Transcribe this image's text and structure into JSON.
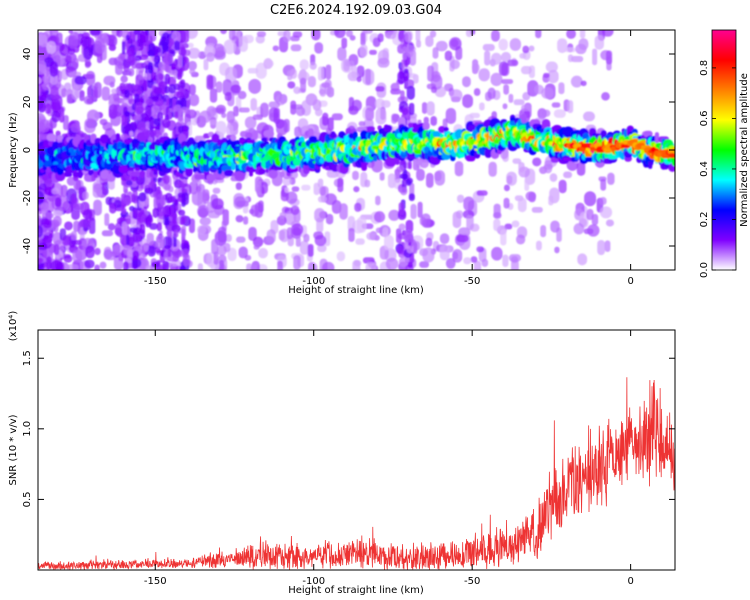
{
  "title": "C2E6.2024.192.09.03.G04",
  "chart_data": [
    {
      "type": "heatmap",
      "xlabel": "Height of straight line (km)",
      "ylabel": "Frequency (Hz)",
      "xlim": [
        -187,
        14
      ],
      "ylim": [
        -50,
        50
      ],
      "xticks": [
        -150,
        -100,
        -50,
        0
      ],
      "yticks": [
        -40,
        -20,
        0,
        20,
        40
      ],
      "ridge": {
        "x": [
          -187,
          -170,
          -150,
          -130,
          -110,
          -90,
          -70,
          -55,
          -45,
          -38,
          -34,
          -25,
          -15,
          -5,
          0,
          5,
          14
        ],
        "freq_hz": [
          -4,
          -3,
          -2,
          -3,
          -2,
          0,
          3,
          2,
          5,
          7,
          6,
          3,
          1,
          1,
          3,
          0,
          -2
        ]
      },
      "colorbar": {
        "label": "Normalized spectral amplitude",
        "ticks": [
          0.0,
          0.2,
          0.4,
          0.6,
          0.8
        ],
        "range": [
          0,
          0.95
        ],
        "colors": [
          "#ffffff",
          "#7f00ff",
          "#0000ff",
          "#00ffff",
          "#00ff00",
          "#ffff00",
          "#ff7f00",
          "#ff0000",
          "#ff0090"
        ]
      }
    },
    {
      "type": "line",
      "xlabel": "Height of straight line (km)",
      "ylabel": "SNR (10 * v/v)",
      "y_multiplier": "(x10⁴)",
      "xlim": [
        -187,
        14
      ],
      "ylim": [
        0,
        1.7
      ],
      "xticks": [
        -150,
        -100,
        -50,
        0
      ],
      "yticks": [
        0.5,
        1.0,
        1.5
      ],
      "series": [
        {
          "color": "#ee3333",
          "envelope": {
            "x": [
              -187,
              -160,
              -140,
              -125,
              -115,
              -100,
              -95,
              -85,
              -75,
              -60,
              -45,
              -35,
              -30,
              -25,
              -20,
              -15,
              -10,
              -5,
              0,
              5,
              8,
              10,
              14
            ],
            "mean": [
              0.03,
              0.04,
              0.05,
              0.08,
              0.1,
              0.09,
              0.11,
              0.12,
              0.09,
              0.1,
              0.14,
              0.2,
              0.28,
              0.45,
              0.55,
              0.65,
              0.72,
              0.8,
              0.88,
              0.9,
              1.05,
              0.9,
              0.8
            ],
            "amp": [
              0.03,
              0.04,
              0.04,
              0.07,
              0.11,
              0.09,
              0.11,
              0.13,
              0.1,
              0.11,
              0.14,
              0.16,
              0.2,
              0.3,
              0.3,
              0.32,
              0.3,
              0.3,
              0.28,
              0.32,
              0.55,
              0.35,
              0.3
            ]
          }
        }
      ]
    }
  ]
}
